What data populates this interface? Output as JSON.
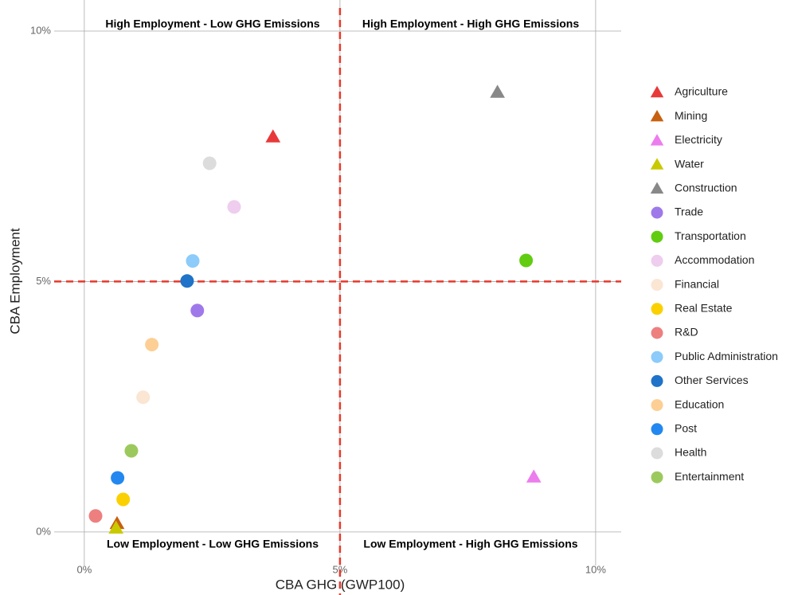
{
  "chart_data": {
    "type": "scatter",
    "xlabel": "CBA GHG (GWP100)",
    "ylabel": "CBA Employment",
    "xlim": [
      -0.59,
      10.5
    ],
    "ylim": [
      -0.67,
      10.62
    ],
    "xticks": [
      {
        "value": 0,
        "label": "0%"
      },
      {
        "value": 5,
        "label": "5%"
      },
      {
        "value": 10,
        "label": "10%"
      }
    ],
    "yticks": [
      {
        "value": 0,
        "label": "0%"
      },
      {
        "value": 5,
        "label": "5%"
      },
      {
        "value": 10,
        "label": "10%"
      }
    ],
    "grid": true,
    "legend": "right",
    "reference_lines": {
      "x": 5,
      "y": 5,
      "color": "#e8392b"
    },
    "quadrant_labels": {
      "top_left": "High Employment - Low GHG Emissions",
      "top_right": "High Employment - High GHG Emissions",
      "bottom_left": "Low Employment - Low GHG Emissions",
      "bottom_right": "Low Employment - High GHG Emissions"
    },
    "series": [
      {
        "name": "Agriculture",
        "color": "#e8393a",
        "shape": "triangle",
        "x": [
          3.69
        ],
        "values": [
          7.89
        ]
      },
      {
        "name": "Mining",
        "color": "#c8600f",
        "shape": "triangle",
        "x": [
          0.64
        ],
        "values": [
          0.17
        ]
      },
      {
        "name": "Electricity",
        "color": "#ec7ded",
        "shape": "triangle",
        "x": [
          8.79
        ],
        "values": [
          1.1
        ]
      },
      {
        "name": "Water",
        "color": "#c9c900",
        "shape": "triangle",
        "x": [
          0.62
        ],
        "values": [
          0.08
        ]
      },
      {
        "name": "Construction",
        "color": "#888888",
        "shape": "triangle",
        "x": [
          8.08
        ],
        "values": [
          8.78
        ]
      },
      {
        "name": "Trade",
        "color": "#9f79ea",
        "shape": "circle",
        "x": [
          2.21
        ],
        "values": [
          4.42
        ]
      },
      {
        "name": "Transportation",
        "color": "#62cc10",
        "shape": "circle",
        "x": [
          8.64
        ],
        "values": [
          5.42
        ]
      },
      {
        "name": "Accommodation",
        "color": "#efcdee",
        "shape": "circle",
        "x": [
          2.93
        ],
        "values": [
          6.49
        ]
      },
      {
        "name": "Financial",
        "color": "#fbe5d3",
        "shape": "circle",
        "x": [
          1.15
        ],
        "values": [
          2.69
        ]
      },
      {
        "name": "Real Estate",
        "color": "#fbd000",
        "shape": "circle",
        "x": [
          0.76
        ],
        "values": [
          0.65
        ]
      },
      {
        "name": "R&D",
        "color": "#ee7f7f",
        "shape": "circle",
        "x": [
          0.22
        ],
        "values": [
          0.32
        ]
      },
      {
        "name": "Public Administration",
        "color": "#8ccbfa",
        "shape": "circle",
        "x": [
          2.12
        ],
        "values": [
          5.41
        ]
      },
      {
        "name": "Other Services",
        "color": "#1f73c8",
        "shape": "circle",
        "x": [
          2.01
        ],
        "values": [
          5.01
        ]
      },
      {
        "name": "Education",
        "color": "#fdcf94",
        "shape": "circle",
        "x": [
          1.32
        ],
        "values": [
          3.74
        ]
      },
      {
        "name": "Post",
        "color": "#2288f0",
        "shape": "circle",
        "x": [
          0.65
        ],
        "values": [
          1.08
        ]
      },
      {
        "name": "Health",
        "color": "#dcdcdc",
        "shape": "circle",
        "x": [
          2.45
        ],
        "values": [
          7.36
        ]
      },
      {
        "name": "Entertainment",
        "color": "#9cc95d",
        "shape": "circle",
        "x": [
          0.92
        ],
        "values": [
          1.62
        ]
      }
    ]
  }
}
